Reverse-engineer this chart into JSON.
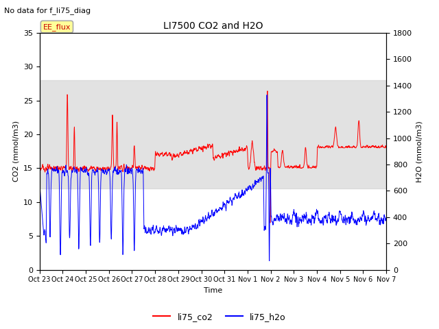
{
  "title": "LI7500 CO2 and H2O",
  "suptitle": "No data for f_li75_diag",
  "xlabel": "Time",
  "ylabel_left": "CO2 (mmol/m3)",
  "ylabel_right": "H2O (mmol/m3)",
  "ylim_left": [
    0,
    35
  ],
  "ylim_right": [
    0,
    1800
  ],
  "legend_labels": [
    "li75_co2",
    "li75_h2o"
  ],
  "co2_color": "#ff0000",
  "h2o_color": "#0000ff",
  "band_color": "#d0d0d0",
  "band_alpha": 0.6,
  "band_co2_low": 12,
  "band_co2_high": 28,
  "annotation_label": "EE_flux",
  "xtick_labels": [
    "Oct 23",
    "Oct 24",
    "Oct 25",
    "Oct 26",
    "Oct 27",
    "Oct 28",
    "Oct 29",
    "Oct 30",
    "Oct 31",
    "Nov 1",
    "Nov 2",
    "Nov 3",
    "Nov 4",
    "Nov 5",
    "Nov 6",
    "Nov 7"
  ],
  "n_points": 2000
}
